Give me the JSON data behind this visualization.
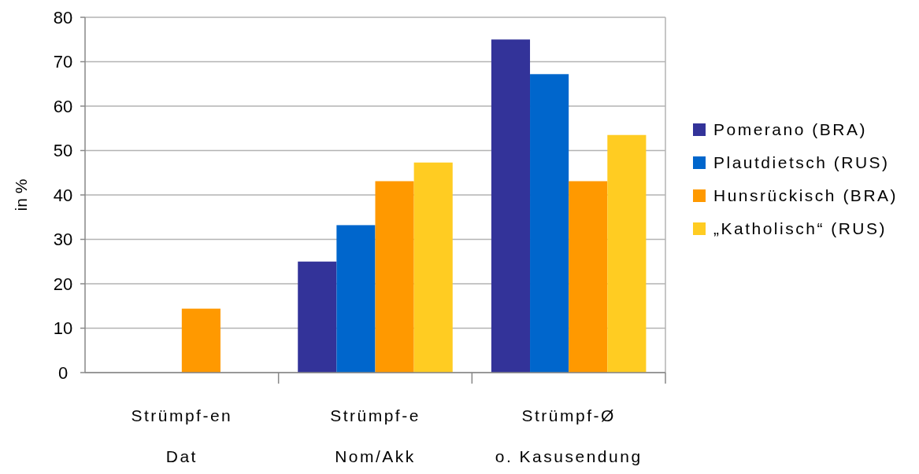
{
  "chart_data": {
    "type": "bar",
    "ylabel": "in %",
    "categories": [
      "Strümpf-en\nDat",
      "Strümpf-e\nNom/Akk",
      "Strümpf-Ø\no. Kasusendung"
    ],
    "series": [
      {
        "name": "Pomerano (BRA)",
        "color": "#333399",
        "values": [
          0,
          25,
          75
        ]
      },
      {
        "name": "Plautdietsch (RUS)",
        "color": "#0066cc",
        "values": [
          0,
          33.2,
          67.2
        ]
      },
      {
        "name": "Hunsrückisch (BRA)",
        "color": "#ff9900",
        "values": [
          14.4,
          43.1,
          43.1
        ]
      },
      {
        "name": "„Katholisch“ (RUS)",
        "color": "#ffcc22",
        "values": [
          0,
          47.3,
          53.5
        ]
      }
    ],
    "ylim": [
      0,
      80
    ],
    "yticks": [
      0,
      10,
      20,
      30,
      40,
      50,
      60,
      70,
      80
    ],
    "grid": "y",
    "legend": "right"
  }
}
